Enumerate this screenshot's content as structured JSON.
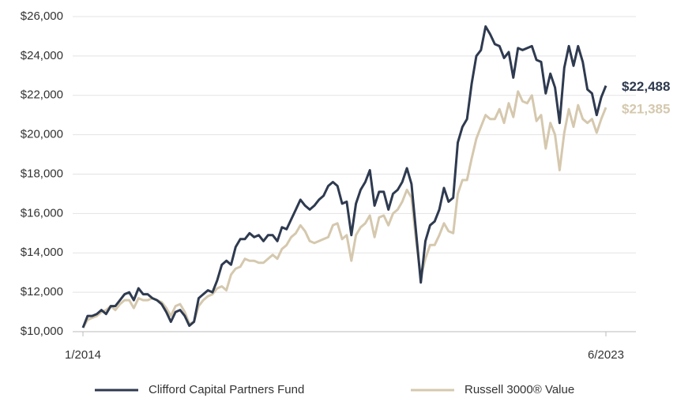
{
  "chart_data": {
    "type": "line",
    "categories": [
      "1/2014",
      null,
      null,
      null,
      null,
      null,
      null,
      null,
      null,
      null,
      null,
      null,
      null,
      null,
      null,
      null,
      null,
      null,
      null,
      null,
      null,
      null,
      null,
      null,
      null,
      null,
      null,
      null,
      null,
      null,
      null,
      null,
      null,
      null,
      null,
      null,
      null,
      null,
      null,
      null,
      null,
      null,
      null,
      null,
      null,
      null,
      null,
      null,
      null,
      null,
      null,
      null,
      null,
      null,
      null,
      null,
      null,
      null,
      null,
      null,
      null,
      null,
      null,
      null,
      null,
      null,
      null,
      null,
      null,
      null,
      null,
      null,
      null,
      null,
      null,
      null,
      null,
      null,
      null,
      null,
      null,
      null,
      null,
      null,
      null,
      null,
      null,
      null,
      null,
      null,
      null,
      null,
      null,
      null,
      null,
      null,
      null,
      null,
      null,
      null,
      null,
      null,
      null,
      null,
      null,
      null,
      null,
      null,
      null,
      null,
      null,
      null,
      null,
      "6/2023"
    ],
    "series": [
      {
        "name": "Clifford Capital Partners Fund",
        "color": "#2e3a4f",
        "values": [
          10200,
          10800,
          10800,
          10900,
          11100,
          10900,
          11300,
          11300,
          11600,
          11900,
          12000,
          11600,
          12200,
          11900,
          11900,
          11700,
          11600,
          11400,
          11000,
          10500,
          11000,
          11100,
          10800,
          10300,
          10500,
          11700,
          11900,
          12100,
          12000,
          12600,
          13400,
          13600,
          13400,
          14300,
          14700,
          14700,
          15000,
          14800,
          14900,
          14600,
          14900,
          14900,
          14600,
          15300,
          15200,
          15700,
          16200,
          16700,
          16400,
          16200,
          16400,
          16700,
          16900,
          17400,
          17600,
          17400,
          16500,
          16600,
          14900,
          16500,
          17200,
          17600,
          18200,
          16400,
          17100,
          17100,
          16200,
          17000,
          17200,
          17600,
          18300,
          17500,
          15000,
          12500,
          14600,
          15400,
          15600,
          16200,
          17300,
          16600,
          16800,
          19600,
          20400,
          20800,
          22600,
          24000,
          24300,
          25500,
          25100,
          24600,
          24500,
          23900,
          24200,
          22900,
          24400,
          24300,
          24400,
          24500,
          23800,
          23700,
          22100,
          23100,
          22400,
          20600,
          23400,
          24500,
          23500,
          24500,
          23700,
          22300,
          22100,
          21000,
          21900,
          22488
        ],
        "value_labels": [
          null,
          null,
          null,
          null,
          null,
          null,
          null,
          null,
          null,
          null,
          null,
          null,
          null,
          null,
          null,
          null,
          null,
          null,
          null,
          null,
          null,
          null,
          null,
          null,
          null,
          null,
          null,
          null,
          null,
          null,
          null,
          null,
          null,
          null,
          null,
          null,
          null,
          null,
          null,
          null,
          null,
          null,
          null,
          null,
          null,
          null,
          null,
          null,
          null,
          null,
          null,
          null,
          null,
          null,
          null,
          null,
          null,
          null,
          null,
          null,
          null,
          null,
          null,
          null,
          null,
          null,
          null,
          null,
          null,
          null,
          null,
          null,
          null,
          null,
          null,
          null,
          null,
          null,
          null,
          null,
          null,
          null,
          null,
          null,
          null,
          null,
          null,
          null,
          null,
          null,
          null,
          null,
          null,
          null,
          null,
          null,
          null,
          null,
          null,
          null,
          null,
          null,
          null,
          null,
          null,
          null,
          null,
          null,
          null,
          null,
          null,
          null,
          null,
          "$22,488"
        ]
      },
      {
        "name": "Russell 3000® Value",
        "color": "#d5c8ae",
        "values": [
          10200,
          10600,
          10700,
          10800,
          11000,
          11100,
          11300,
          11100,
          11400,
          11600,
          11600,
          11200,
          11700,
          11600,
          11600,
          11700,
          11600,
          11500,
          11200,
          10800,
          11300,
          11400,
          11000,
          10400,
          10500,
          11300,
          11600,
          11800,
          11900,
          12200,
          12300,
          12100,
          12900,
          13200,
          13300,
          13700,
          13600,
          13600,
          13500,
          13500,
          13700,
          13900,
          13700,
          14200,
          14400,
          14800,
          15000,
          15400,
          15100,
          14600,
          14500,
          14600,
          14700,
          14800,
          15400,
          15500,
          14700,
          14900,
          13600,
          14900,
          15300,
          15500,
          15900,
          14800,
          15800,
          15900,
          15400,
          16000,
          16200,
          16600,
          17200,
          16800,
          14600,
          12800,
          13700,
          14400,
          14400,
          14900,
          15500,
          15100,
          15000,
          17000,
          17700,
          17700,
          18800,
          19800,
          20400,
          21000,
          20800,
          20800,
          21300,
          20600,
          21600,
          20900,
          22200,
          21700,
          21600,
          22000,
          20700,
          21000,
          19300,
          20600,
          20000,
          18200,
          20100,
          21300,
          20400,
          21500,
          20800,
          20600,
          20800,
          20100,
          20800,
          21385
        ],
        "value_labels": [
          null,
          null,
          null,
          null,
          null,
          null,
          null,
          null,
          null,
          null,
          null,
          null,
          null,
          null,
          null,
          null,
          null,
          null,
          null,
          null,
          null,
          null,
          null,
          null,
          null,
          null,
          null,
          null,
          null,
          null,
          null,
          null,
          null,
          null,
          null,
          null,
          null,
          null,
          null,
          null,
          null,
          null,
          null,
          null,
          null,
          null,
          null,
          null,
          null,
          null,
          null,
          null,
          null,
          null,
          null,
          null,
          null,
          null,
          null,
          null,
          null,
          null,
          null,
          null,
          null,
          null,
          null,
          null,
          null,
          null,
          null,
          null,
          null,
          null,
          null,
          null,
          null,
          null,
          null,
          null,
          null,
          null,
          null,
          null,
          null,
          null,
          null,
          null,
          null,
          null,
          null,
          null,
          null,
          null,
          null,
          null,
          null,
          null,
          null,
          null,
          null,
          null,
          null,
          null,
          null,
          null,
          null,
          null,
          null,
          null,
          null,
          null,
          null,
          "$21,385"
        ]
      }
    ],
    "ylim": [
      10000,
      26000
    ],
    "yticks": [
      {
        "value": 10000,
        "label": "$10,000"
      },
      {
        "value": 12000,
        "label": "$12,000"
      },
      {
        "value": 14000,
        "label": "$14,000"
      },
      {
        "value": 16000,
        "label": "$16,000"
      },
      {
        "value": 18000,
        "label": "$18,000"
      },
      {
        "value": 20000,
        "label": "$20,000"
      },
      {
        "value": 22000,
        "label": "$22,000"
      },
      {
        "value": 24000,
        "label": "$24,000"
      },
      {
        "value": 26000,
        "label": "$26,000"
      }
    ],
    "grid": true,
    "legend": "bottom"
  }
}
